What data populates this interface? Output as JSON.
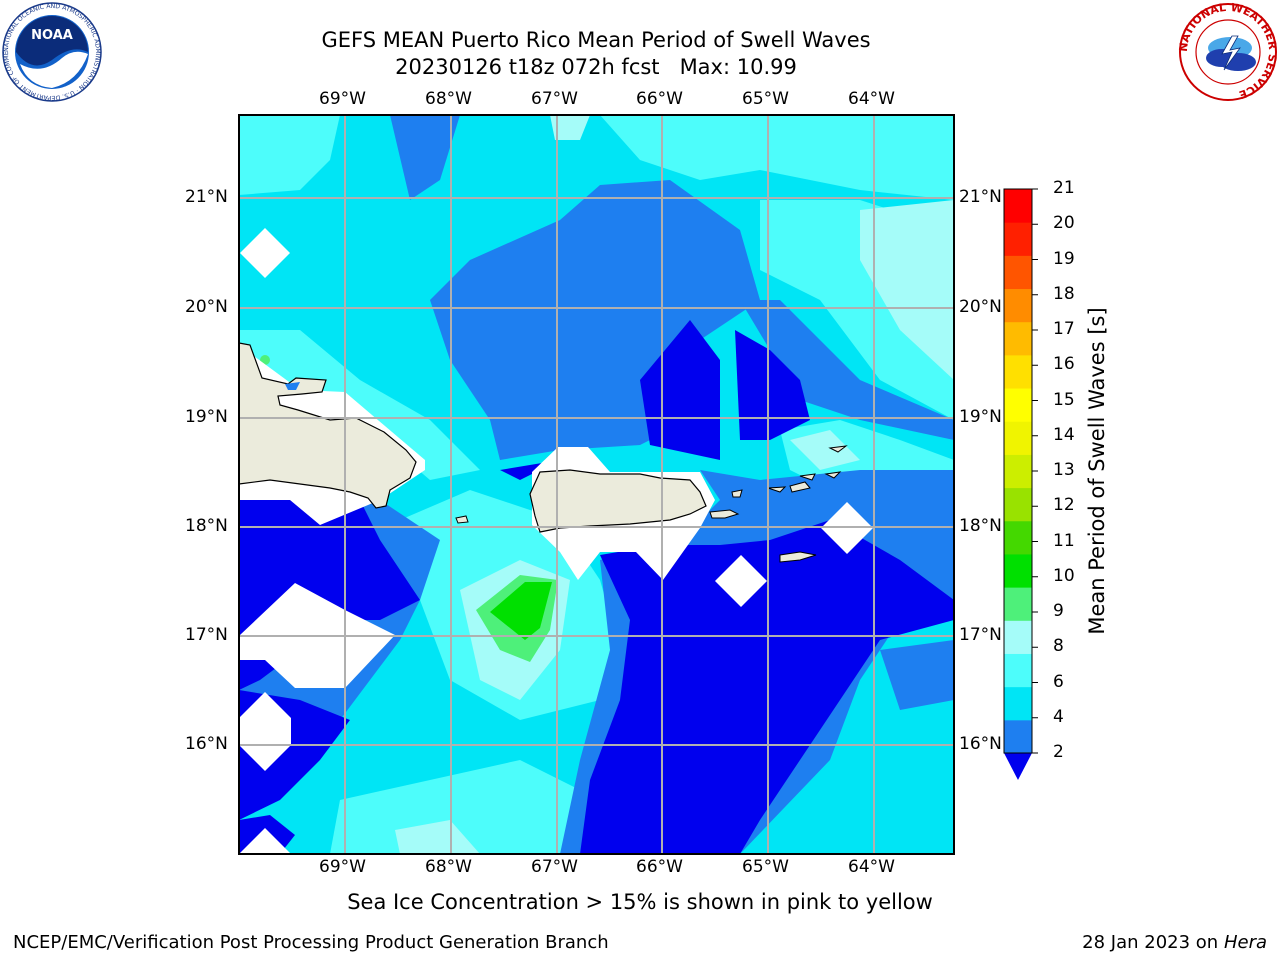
{
  "header": {
    "title_line1": "GEFS MEAN Puerto Rico Mean Period of Swell Waves",
    "title_line2": "20230126 t18z 072h fcst   Max: 10.99"
  },
  "logos": {
    "noaa_text": "NOAA",
    "noaa_ring_text": "NATIONAL OCEANIC AND ATMOSPHERIC ADMINISTRATION · U.S. DEPARTMENT OF COMMERCE",
    "nws_ring_text": "NATIONAL WEATHER SERVICE"
  },
  "map": {
    "lon_labels": [
      "69°W",
      "68°W",
      "67°W",
      "66°W",
      "65°W",
      "64°W"
    ],
    "lat_labels": [
      "21°N",
      "20°N",
      "19°N",
      "18°N",
      "17°N",
      "16°N"
    ],
    "colors": {
      "under": "#0000ee",
      "level_2_4": "#1e7ff0",
      "level_4_6": "#00e5f5",
      "level_6_8": "#4dfdfb",
      "level_8_9": "#a5fcf9",
      "level_9_10": "#4ef07a",
      "level_10_11": "#00e000",
      "land": "#ebebdc",
      "nodata": "#ffffff"
    }
  },
  "colorbar": {
    "label": "Mean Period of Swell Waves [s]",
    "ticks": [
      "2",
      "4",
      "6",
      "8",
      "9",
      "10",
      "11",
      "12",
      "13",
      "14",
      "15",
      "16",
      "17",
      "18",
      "19",
      "20",
      "21"
    ],
    "colors": [
      "#1e7ff0",
      "#00e5f5",
      "#4dfdfb",
      "#a5fcf9",
      "#4ef07a",
      "#00e000",
      "#44d800",
      "#99e200",
      "#ccee00",
      "#f0f400",
      "#ffff00",
      "#ffe000",
      "#ffbb00",
      "#ff8c00",
      "#ff5500",
      "#ff2000",
      "#ff0000"
    ],
    "under_color": "#0000ee"
  },
  "note": "Sea Ice Concentration > 15% is shown in pink to yellow",
  "footer": {
    "left": "NCEP/EMC/Verification Post Processing Product Generation Branch",
    "right_prefix": "28 Jan 2023 on ",
    "right_host": "Hera"
  }
}
